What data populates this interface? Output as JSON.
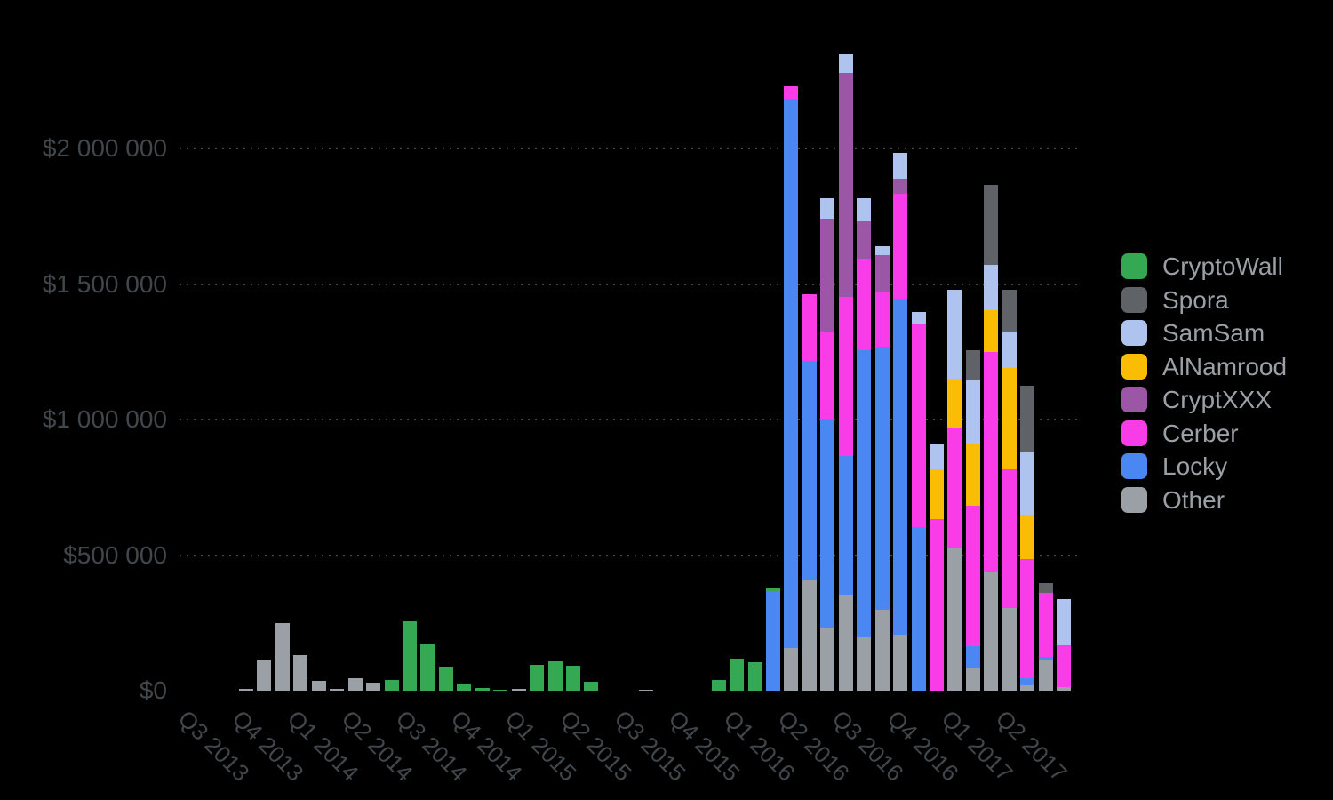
{
  "chart_data": {
    "type": "bar",
    "stacked": true,
    "orientation": "vertical",
    "background": "#000000",
    "grid": "dotted-horizontal",
    "unit": "USD per month",
    "categories": [
      "Jul 2013",
      "Aug 2013",
      "Sep 2013",
      "Oct 2013",
      "Nov 2013",
      "Dec 2013",
      "Jan 2014",
      "Feb 2014",
      "Mar 2014",
      "Apr 2014",
      "May 2014",
      "Jun 2014",
      "Jul 2014",
      "Aug 2014",
      "Sep 2014",
      "Oct 2014",
      "Nov 2014",
      "Dec 2014",
      "Jan 2015",
      "Feb 2015",
      "Mar 2015",
      "Apr 2015",
      "May 2015",
      "Jun 2015",
      "Jul 2015",
      "Aug 2015",
      "Sep 2015",
      "Oct 2015",
      "Nov 2015",
      "Dec 2015",
      "Jan 2016",
      "Feb 2016",
      "Mar 2016",
      "Apr 2016",
      "May 2016",
      "Jun 2016",
      "Jul 2016",
      "Aug 2016",
      "Sep 2016",
      "Oct 2016",
      "Nov 2016",
      "Dec 2016",
      "Jan 2017",
      "Feb 2017",
      "Mar 2017",
      "Apr 2017",
      "May 2017",
      "Jun 2017"
    ],
    "x_tick_labels": [
      "Q3 2013",
      "Q4 2013",
      "Q1 2014",
      "Q2 2014",
      "Q3 2014",
      "Q4 2014",
      "Q1 2015",
      "Q2 2015",
      "Q3 2015",
      "Q4 2015",
      "Q1 2016",
      "Q2 2016",
      "Q3 2016",
      "Q4 2016",
      "Q1 2017",
      "Q2 2017"
    ],
    "y_axis": {
      "ticks": [
        {
          "label": "$0",
          "value": 0
        },
        {
          "label": "$500 000",
          "value": 500000
        },
        {
          "label": "$1 000 000",
          "value": 1000000
        },
        {
          "label": "$1 500 000",
          "value": 1500000
        },
        {
          "label": "$2 000 000",
          "value": 2000000
        }
      ],
      "max": 2400000
    },
    "series": [
      {
        "name": "Other",
        "color": "#9aa0a6",
        "values": [
          0,
          0,
          5000,
          110000,
          250000,
          130000,
          36000,
          7000,
          45000,
          30000,
          0,
          0,
          0,
          0,
          0,
          0,
          0,
          5000,
          0,
          0,
          0,
          0,
          0,
          0,
          2000,
          0,
          0,
          0,
          0,
          0,
          0,
          0,
          157000,
          407000,
          233000,
          354000,
          197000,
          299000,
          207000,
          0,
          0,
          528000,
          85000,
          439000,
          305000,
          20000,
          115000,
          13000
        ]
      },
      {
        "name": "Locky",
        "color": "#4a87f2",
        "values": [
          0,
          0,
          0,
          0,
          0,
          0,
          0,
          0,
          0,
          0,
          0,
          0,
          0,
          0,
          0,
          0,
          0,
          0,
          0,
          0,
          0,
          0,
          0,
          0,
          0,
          0,
          0,
          0,
          0,
          0,
          0,
          368000,
          2027000,
          810000,
          771000,
          512000,
          1059000,
          971000,
          1240000,
          604000,
          0,
          0,
          79000,
          0,
          0,
          26000,
          10000,
          0
        ]
      },
      {
        "name": "Cerber",
        "color": "#f83ce8",
        "values": [
          0,
          0,
          0,
          0,
          0,
          0,
          0,
          0,
          0,
          0,
          0,
          0,
          0,
          0,
          0,
          0,
          0,
          0,
          0,
          0,
          0,
          0,
          0,
          0,
          0,
          0,
          0,
          0,
          0,
          0,
          0,
          0,
          46000,
          246000,
          321000,
          587000,
          338000,
          203000,
          387000,
          751000,
          633000,
          443000,
          518000,
          810000,
          512000,
          439000,
          236000,
          154000
        ]
      },
      {
        "name": "CryptXXX",
        "color": "#9b56a5",
        "values": [
          0,
          0,
          0,
          0,
          0,
          0,
          0,
          0,
          0,
          0,
          0,
          0,
          0,
          0,
          0,
          0,
          0,
          0,
          0,
          0,
          0,
          0,
          0,
          0,
          0,
          0,
          0,
          0,
          0,
          0,
          0,
          0,
          0,
          0,
          416000,
          827000,
          138000,
          135000,
          56000,
          0,
          0,
          0,
          0,
          0,
          0,
          0,
          0,
          0
        ]
      },
      {
        "name": "AlNamrood",
        "color": "#fbbc04",
        "values": [
          0,
          0,
          0,
          0,
          0,
          0,
          0,
          0,
          0,
          0,
          0,
          0,
          0,
          0,
          0,
          0,
          0,
          0,
          0,
          0,
          0,
          0,
          0,
          0,
          0,
          0,
          0,
          0,
          0,
          0,
          0,
          0,
          0,
          0,
          0,
          0,
          0,
          0,
          0,
          0,
          184000,
          180000,
          230000,
          154000,
          374000,
          164000,
          0,
          0
        ]
      },
      {
        "name": "SamSam",
        "color": "#aec3ee",
        "values": [
          0,
          0,
          0,
          0,
          0,
          0,
          0,
          0,
          0,
          0,
          0,
          0,
          0,
          0,
          0,
          0,
          0,
          0,
          0,
          0,
          0,
          0,
          0,
          0,
          0,
          0,
          0,
          0,
          0,
          0,
          0,
          0,
          0,
          0,
          75000,
          69000,
          85000,
          33000,
          92000,
          43000,
          92000,
          328000,
          233000,
          167000,
          134000,
          230000,
          0,
          171000
        ]
      },
      {
        "name": "Spora",
        "color": "#5f6368",
        "values": [
          0,
          0,
          0,
          0,
          0,
          0,
          0,
          0,
          0,
          0,
          0,
          0,
          0,
          0,
          0,
          0,
          0,
          0,
          0,
          0,
          0,
          0,
          0,
          0,
          0,
          0,
          0,
          0,
          0,
          0,
          0,
          0,
          0,
          0,
          0,
          0,
          0,
          0,
          0,
          0,
          0,
          0,
          111000,
          295000,
          154000,
          246000,
          36000,
          0
        ]
      },
      {
        "name": "CryptoWall",
        "color": "#34a853",
        "values": [
          0,
          0,
          0,
          0,
          0,
          0,
          0,
          0,
          0,
          0,
          39000,
          256000,
          170000,
          88000,
          26000,
          10000,
          3000,
          0,
          95000,
          108000,
          92000,
          33000,
          0,
          0,
          0,
          0,
          0,
          0,
          38000,
          118000,
          105000,
          12000,
          0,
          0,
          0,
          0,
          0,
          0,
          0,
          0,
          0,
          0,
          0,
          0,
          0,
          0,
          0,
          0
        ]
      }
    ],
    "legend": {
      "position": "right",
      "order": [
        "CryptoWall",
        "Spora",
        "SamSam",
        "AlNamrood",
        "CryptXXX",
        "Cerber",
        "Locky",
        "Other"
      ]
    }
  },
  "colors": {
    "background": "#000000",
    "axis_label": "#42474c",
    "gridline": "#43484d",
    "legend_text": "#9aa0a6"
  }
}
